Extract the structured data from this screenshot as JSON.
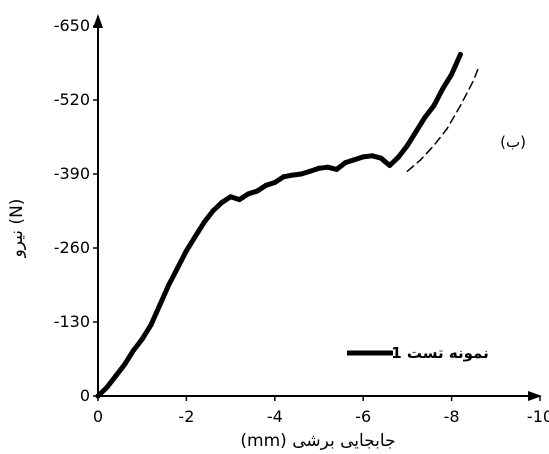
{
  "chart_data": {
    "type": "line",
    "title": "",
    "xlabel": "(mm) جابجایی برشی",
    "ylabel": "نیرو (N)",
    "xlim": [
      0,
      -10
    ],
    "ylim": [
      0,
      -650
    ],
    "x_ticks": [
      0,
      -2,
      -4,
      -6,
      -8,
      -10
    ],
    "x_tick_labels": [
      "0",
      "-2",
      "-4",
      "-6",
      "-8",
      "-10"
    ],
    "y_ticks": [
      0,
      -130,
      -260,
      -390,
      -520,
      -650
    ],
    "y_tick_labels": [
      "0",
      "-130",
      "-260",
      "-390",
      "-520",
      "-650"
    ],
    "grid": false,
    "legend_position": "bottom-right",
    "series": [
      {
        "name": "نمونه تست 1",
        "color": "#000000",
        "style": "solid",
        "x": [
          0,
          -0.2,
          -0.4,
          -0.6,
          -0.8,
          -1.0,
          -1.2,
          -1.4,
          -1.6,
          -1.8,
          -2.0,
          -2.2,
          -2.4,
          -2.6,
          -2.8,
          -3.0,
          -3.2,
          -3.4,
          -3.6,
          -3.8,
          -4.0,
          -4.2,
          -4.4,
          -4.6,
          -4.8,
          -5.0,
          -5.2,
          -5.4,
          -5.6,
          -5.8,
          -6.0,
          -6.2,
          -6.4,
          -6.6,
          -6.8,
          -7.0,
          -7.2,
          -7.4,
          -7.6,
          -7.8,
          -8.0,
          -8.2
        ],
        "y": [
          0,
          -15,
          -35,
          -55,
          -80,
          -100,
          -125,
          -160,
          -195,
          -225,
          -255,
          -280,
          -305,
          -325,
          -340,
          -350,
          -345,
          -355,
          -360,
          -370,
          -375,
          -385,
          -388,
          -390,
          -395,
          -400,
          -402,
          -398,
          -410,
          -415,
          -420,
          -422,
          -418,
          -405,
          -420,
          -440,
          -465,
          -490,
          -510,
          -540,
          -565,
          -600
        ]
      },
      {
        "name": "",
        "color": "#000000",
        "style": "dashed",
        "x": [
          -7.0,
          -7.3,
          -7.6,
          -7.9,
          -8.2,
          -8.5,
          -8.6
        ],
        "y": [
          -395,
          -415,
          -440,
          -470,
          -510,
          -555,
          -575
        ]
      }
    ],
    "legend": [
      {
        "label": "نمونه تست 1",
        "color": "#000000"
      }
    ],
    "annotation": "(ب)"
  }
}
